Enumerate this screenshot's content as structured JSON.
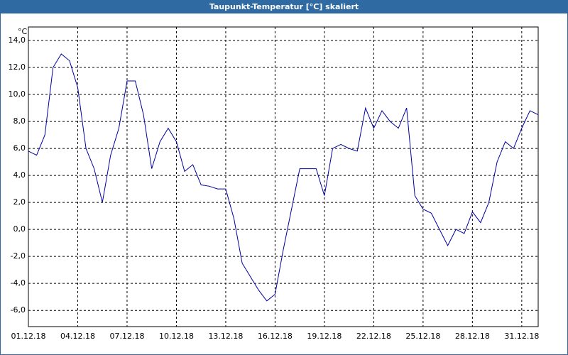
{
  "chart_data": {
    "type": "line",
    "title": "Taupunkt-Temperatur [°C] skaliert",
    "y_unit": "°C",
    "categories": [
      "01.12.18",
      null,
      null,
      null,
      null,
      null,
      "04.12.18",
      null,
      null,
      null,
      null,
      null,
      "07.12.18",
      null,
      null,
      null,
      null,
      null,
      "10.12.18",
      null,
      null,
      null,
      null,
      null,
      "13.12.18",
      null,
      null,
      null,
      null,
      null,
      "16.12.18",
      null,
      null,
      null,
      null,
      null,
      "19.12.18",
      null,
      null,
      null,
      null,
      null,
      "22.12.18",
      null,
      null,
      null,
      null,
      null,
      "25.12.18",
      null,
      null,
      null,
      null,
      null,
      "28.12.18",
      null,
      null,
      null,
      null,
      null,
      "31.12.18",
      null,
      null
    ],
    "series": [
      {
        "color": "#0000a0",
        "values": [
          5.8,
          5.5,
          7.0,
          12.0,
          13.0,
          12.5,
          10.5,
          6.0,
          4.5,
          2.0,
          5.5,
          7.5,
          11.0,
          11.0,
          8.5,
          4.5,
          6.5,
          7.5,
          6.5,
          4.3,
          4.8,
          3.3,
          3.2,
          3.0,
          3.0,
          0.8,
          -2.5,
          -3.5,
          -4.5,
          -5.3,
          -4.8,
          -1.5,
          1.5,
          4.5,
          4.5,
          4.5,
          2.5,
          6.0,
          6.3,
          6.0,
          5.8,
          9.0,
          7.5,
          8.8,
          8.0,
          7.5,
          9.0,
          2.5,
          1.5,
          1.2,
          0.0,
          -1.2,
          0.0,
          -0.3,
          1.3,
          0.5,
          2.0,
          5.0,
          6.5,
          6.0,
          7.5,
          8.8,
          8.5
        ]
      }
    ],
    "ylim": [
      -7.2,
      15
    ],
    "yticks": [
      {
        "value": -6,
        "label": "-6,0"
      },
      {
        "value": -4,
        "label": "-4,0"
      },
      {
        "value": -2,
        "label": "-2,0"
      },
      {
        "value": 0,
        "label": "0,0"
      },
      {
        "value": 2,
        "label": "2,0"
      },
      {
        "value": 4,
        "label": "4,0"
      },
      {
        "value": 6,
        "label": "6,0"
      },
      {
        "value": 8,
        "label": "8,0"
      },
      {
        "value": 10,
        "label": "10,0"
      },
      {
        "value": 12,
        "label": "12,0"
      },
      {
        "value": 14,
        "label": "14,0"
      }
    ],
    "grid": true
  }
}
